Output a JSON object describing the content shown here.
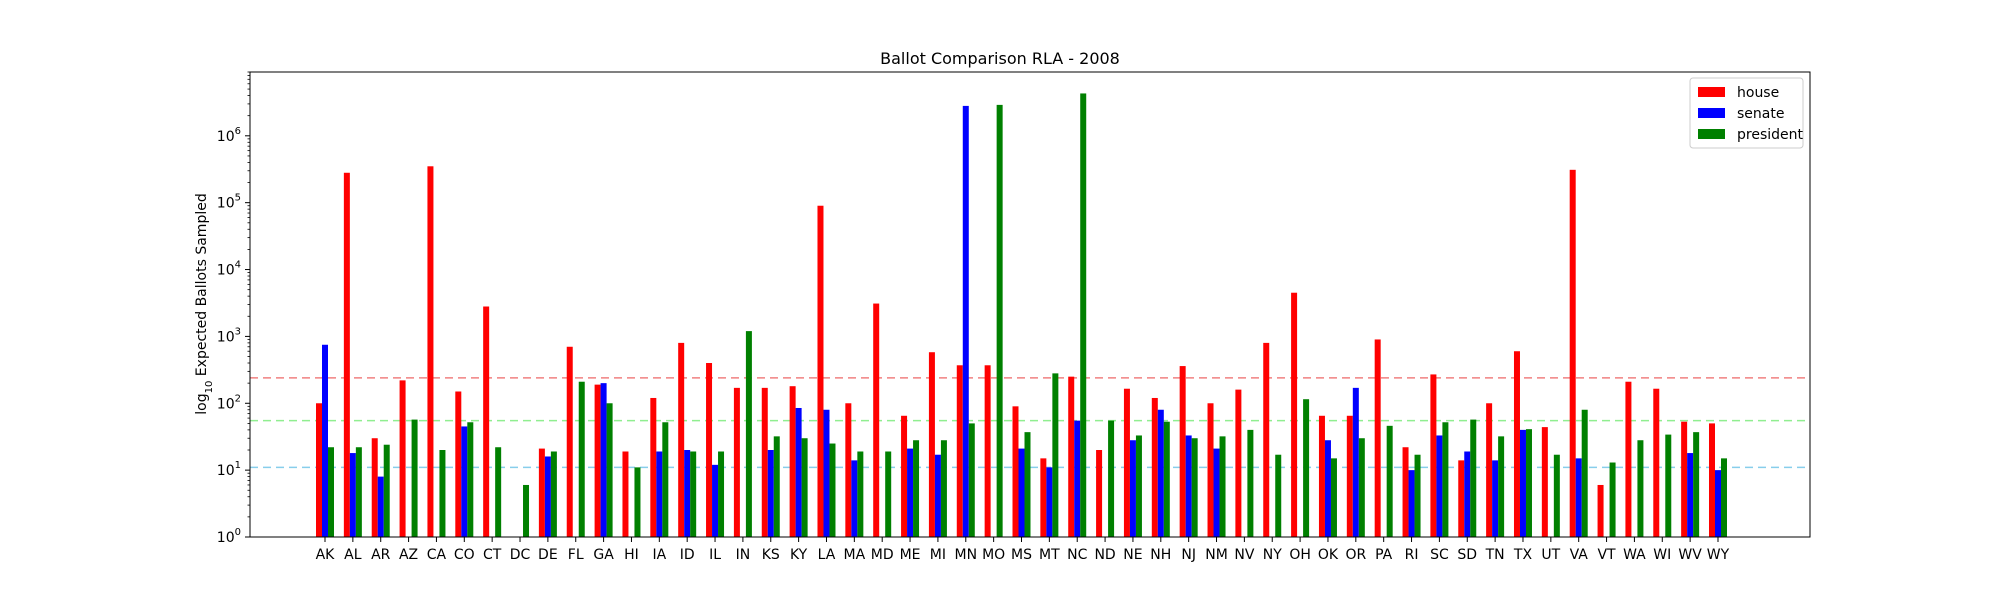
{
  "chart_data": {
    "type": "bar",
    "title": "Ballot Comparison RLA - 2008",
    "xlabel": "",
    "ylabel_prefix": "log",
    "ylabel_subscript": "10",
    "ylabel_suffix": " Expected Ballots Sampled",
    "yscale": "log",
    "ylim": [
      1,
      9000000
    ],
    "yticks": [
      {
        "value": 1,
        "base": "10",
        "exp": "0"
      },
      {
        "value": 10,
        "base": "10",
        "exp": "1"
      },
      {
        "value": 100,
        "base": "10",
        "exp": "2"
      },
      {
        "value": 1000,
        "base": "10",
        "exp": "3"
      },
      {
        "value": 10000,
        "base": "10",
        "exp": "4"
      },
      {
        "value": 100000,
        "base": "10",
        "exp": "5"
      },
      {
        "value": 1000000,
        "base": "10",
        "exp": "6"
      }
    ],
    "grid": false,
    "legend_position": "top-right",
    "categories": [
      "AK",
      "AL",
      "AR",
      "AZ",
      "CA",
      "CO",
      "CT",
      "DC",
      "DE",
      "FL",
      "GA",
      "HI",
      "IA",
      "ID",
      "IL",
      "IN",
      "KS",
      "KY",
      "LA",
      "MA",
      "MD",
      "ME",
      "MI",
      "MN",
      "MO",
      "MS",
      "MT",
      "NC",
      "ND",
      "NE",
      "NH",
      "NJ",
      "NM",
      "NV",
      "NY",
      "OH",
      "OK",
      "OR",
      "PA",
      "RI",
      "SC",
      "SD",
      "TN",
      "TX",
      "UT",
      "VA",
      "VT",
      "WA",
      "WI",
      "WV",
      "WY"
    ],
    "series": [
      {
        "name": "house",
        "color": "#ff0000",
        "values": [
          100,
          280000,
          30,
          220,
          350000,
          150,
          2800,
          null,
          21,
          700,
          190,
          19,
          120,
          800,
          400,
          170,
          170,
          180,
          90000,
          100,
          3100,
          65,
          580,
          370,
          370,
          90,
          15,
          250,
          20,
          165,
          120,
          360,
          100,
          160,
          800,
          4500,
          65,
          65,
          900,
          22,
          270,
          14,
          100,
          600,
          44,
          310000,
          6,
          210,
          165,
          53,
          50
        ]
      },
      {
        "name": "senate",
        "color": "#0000ff",
        "values": [
          750,
          18,
          8,
          null,
          null,
          45,
          null,
          null,
          16,
          null,
          200,
          null,
          19,
          20,
          12,
          null,
          20,
          85,
          80,
          14,
          null,
          21,
          17,
          2800000,
          null,
          21,
          11,
          55,
          null,
          28,
          80,
          33,
          21,
          null,
          null,
          null,
          28,
          170,
          null,
          10,
          33,
          19,
          14,
          40,
          null,
          15,
          null,
          null,
          null,
          18,
          10
        ]
      },
      {
        "name": "president",
        "color": "#008000",
        "values": [
          22,
          22,
          24,
          57,
          20,
          52,
          22,
          6,
          19,
          210,
          100,
          11,
          52,
          19,
          19,
          1200,
          32,
          30,
          25,
          19,
          19,
          28,
          28,
          50,
          2900000,
          37,
          280,
          4300000,
          55,
          33,
          53,
          30,
          32,
          40,
          17,
          115,
          15,
          30,
          46,
          17,
          52,
          57,
          32,
          41,
          17,
          80,
          13,
          28,
          34,
          37,
          15
        ]
      }
    ],
    "reference_lines": [
      {
        "value": 240,
        "color": "#f08080"
      },
      {
        "value": 55,
        "color": "#90ee90"
      },
      {
        "value": 11,
        "color": "#87ceeb"
      }
    ]
  }
}
